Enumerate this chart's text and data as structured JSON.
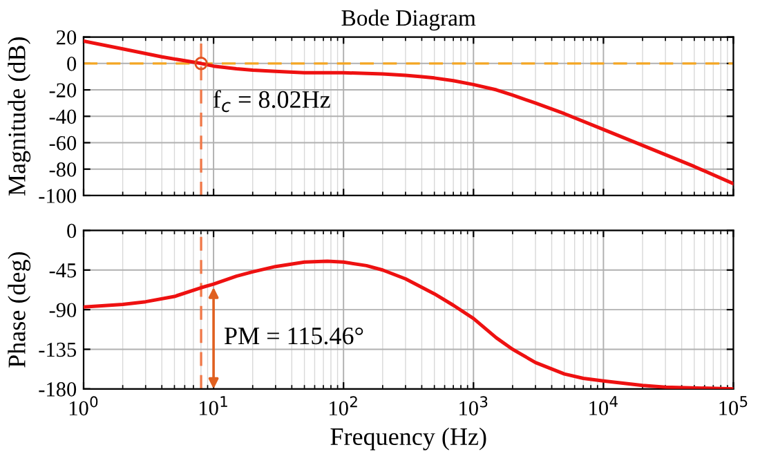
{
  "chart_data": [
    {
      "type": "line",
      "title": "Bode Diagram",
      "ylabel": "Magnitude (dB)",
      "log": "x",
      "grid": true,
      "tick_labels": "y",
      "line_style": "solid",
      "marker": "none",
      "xlim": [
        1,
        100000
      ],
      "xticks": [
        {
          "value": 1,
          "label": null
        },
        {
          "value": 10,
          "label": null
        },
        {
          "value": 100,
          "label": null
        },
        {
          "value": 1000,
          "label": null
        },
        {
          "value": 10000,
          "label": null
        },
        {
          "value": 100000,
          "label": null
        }
      ],
      "ylim": [
        -100,
        20
      ],
      "yticks": [
        -100,
        -80,
        -60,
        -40,
        -20,
        0,
        20
      ],
      "series": [
        {
          "color": "#ee1111",
          "x": [
            1,
            2,
            4,
            8.02,
            10,
            15,
            20,
            30,
            50,
            100,
            200,
            300,
            400,
            500,
            700,
            1000,
            1500,
            2000,
            3000,
            5000,
            10000,
            20000,
            50000,
            100000
          ],
          "values": [
            17,
            11,
            5,
            0,
            -2,
            -4,
            -5,
            -6,
            -7,
            -7,
            -8,
            -9,
            -10,
            -11,
            -13,
            -16,
            -20,
            -24,
            -30,
            -38,
            -50,
            -62,
            -78,
            -91
          ]
        }
      ],
      "ref_lines": [
        {
          "axis": "y",
          "value": 0,
          "color": "#f5a623",
          "line_style": "dashed"
        },
        {
          "axis": "x",
          "value": 8.02,
          "color": "#f07848",
          "line_style": "dashed"
        }
      ],
      "annotations": [
        {
          "text": "f$_{c}$ = 8.02Hz",
          "x": 8.02,
          "y": 0
        }
      ]
    },
    {
      "type": "line",
      "xlabel": "Frequency (Hz)",
      "ylabel": "Phase (deg)",
      "log": "x",
      "grid": true,
      "line_style": "solid",
      "marker": "none",
      "xlim": [
        1,
        100000
      ],
      "xticks": [
        {
          "value": 1,
          "label": "10$^{0}$"
        },
        {
          "value": 10,
          "label": "10$^{1}$"
        },
        {
          "value": 100,
          "label": "10$^{2}$"
        },
        {
          "value": 1000,
          "label": "10$^{3}$"
        },
        {
          "value": 10000,
          "label": "10$^{4}$"
        },
        {
          "value": 100000,
          "label": "10$^{5}$"
        }
      ],
      "ylim": [
        -180,
        0
      ],
      "yticks": [
        -180,
        -135,
        -90,
        -45,
        0
      ],
      "series": [
        {
          "color": "#ee1111",
          "x": [
            1,
            2,
            3,
            5,
            8.02,
            10,
            15,
            20,
            30,
            50,
            75,
            100,
            150,
            200,
            300,
            500,
            700,
            1000,
            1500,
            2000,
            3000,
            5000,
            7000,
            10000,
            20000,
            30000,
            100000
          ],
          "values": [
            -87,
            -84,
            -81,
            -75,
            -65,
            -61,
            -52,
            -47,
            -41,
            -36,
            -35,
            -36,
            -40,
            -45,
            -55,
            -72,
            -85,
            -100,
            -122,
            -135,
            -150,
            -163,
            -168,
            -171,
            -176,
            -178,
            -180
          ]
        }
      ],
      "ref_lines": [
        {
          "axis": "x",
          "value": 8.02,
          "color": "#f07848",
          "line_style": "dashed"
        }
      ],
      "annotations": [
        {
          "text": "PM = 115.46°",
          "x": 10,
          "y": -64.54
        }
      ]
    }
  ]
}
